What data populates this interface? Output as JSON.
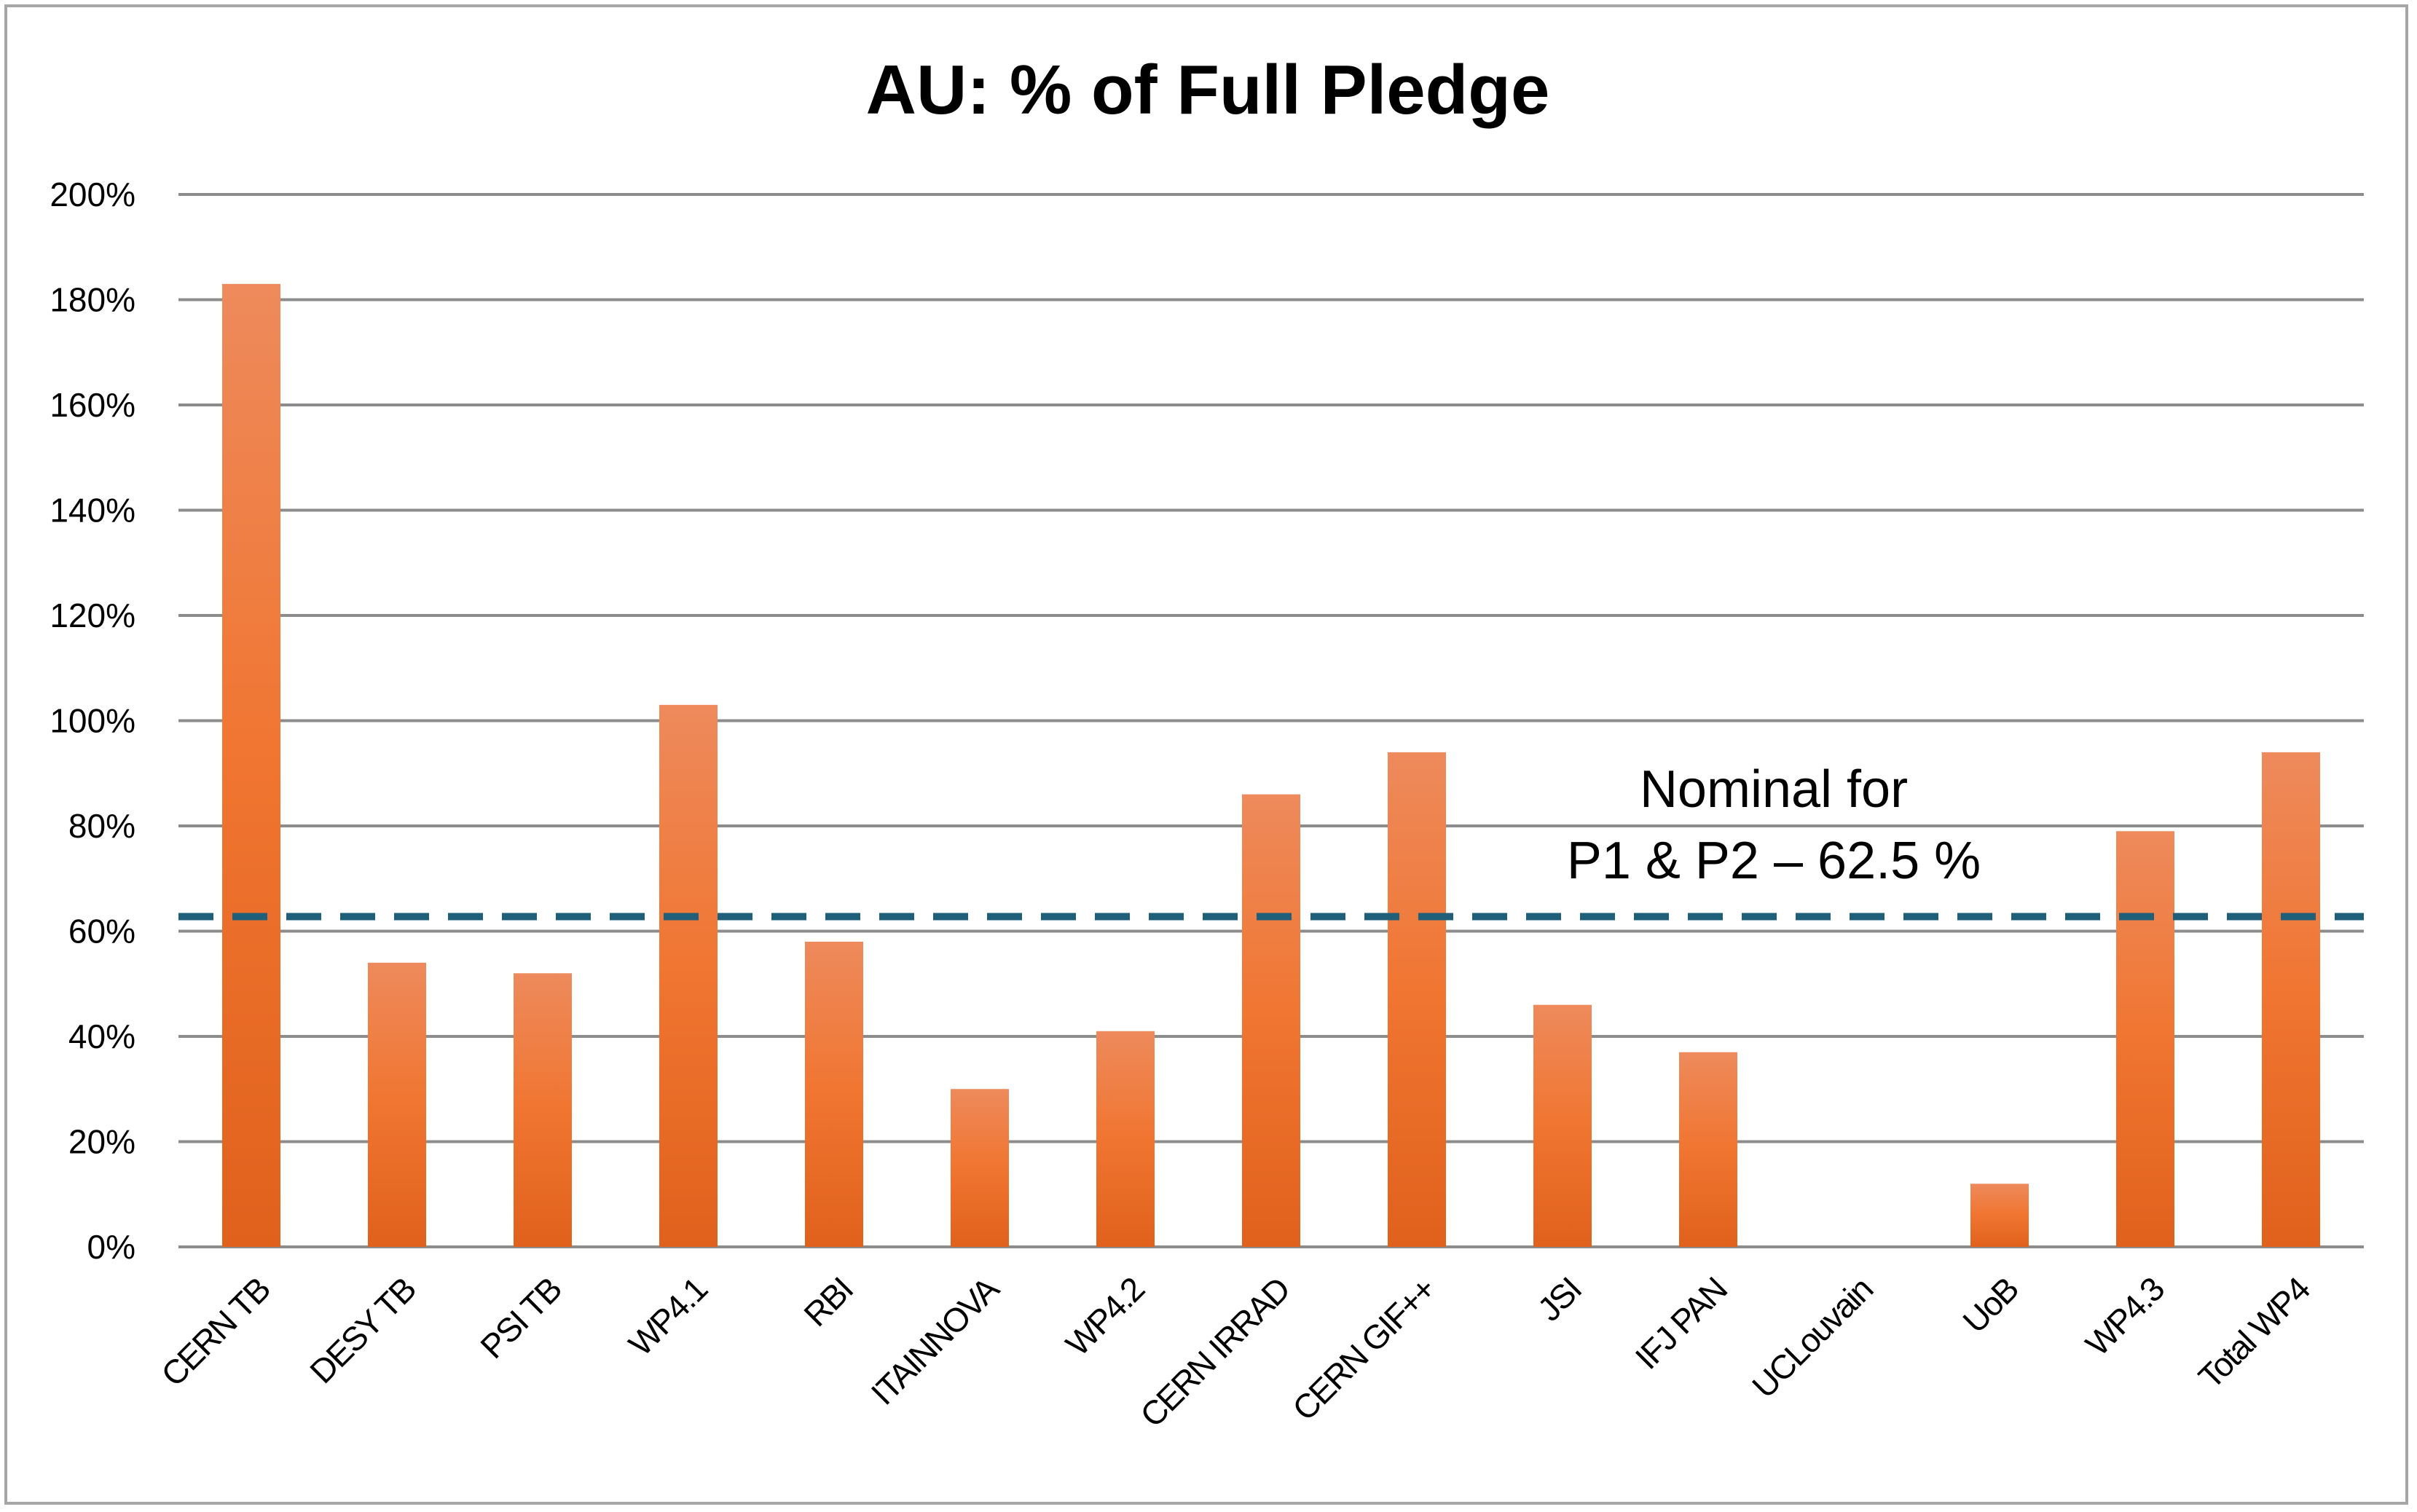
{
  "chart_data": {
    "type": "bar",
    "title": "AU: % of Full Pledge",
    "categories": [
      "CERN TB",
      "DESY TB",
      "PSI TB",
      "WP4.1",
      "RBI",
      "ITAINNOVA",
      "WP4.2",
      "CERN IRRAD",
      "CERN GIF++",
      "JSI",
      "IFJ PAN",
      "UCLouvain",
      "UoB",
      "WP4.3",
      "Total WP4"
    ],
    "values": [
      183,
      54,
      52,
      103,
      58,
      30,
      41,
      86,
      94,
      46,
      37,
      0,
      12,
      79,
      94
    ],
    "ylim": [
      0,
      200
    ],
    "yticks": [
      0,
      20,
      40,
      60,
      80,
      100,
      120,
      140,
      160,
      180,
      200
    ],
    "ytick_labels": [
      "0%",
      "20%",
      "40%",
      "60%",
      "80%",
      "100%",
      "120%",
      "140%",
      "160%",
      "180%",
      "200%"
    ],
    "xlabel": "",
    "ylabel": "",
    "grid": true,
    "reference_line": {
      "value": 62.5,
      "style": "dashed",
      "color": "#1f5f7a"
    },
    "annotation": {
      "line1": "Nominal for",
      "line2": "P1 & P2 – 62.5 %"
    },
    "colors": {
      "bar_top": "#ee8a5c",
      "bar_mid": "#f07530",
      "bar_bottom": "#e0611c",
      "grid": "#8c8c8c",
      "frame": "#a6a6a6"
    }
  }
}
